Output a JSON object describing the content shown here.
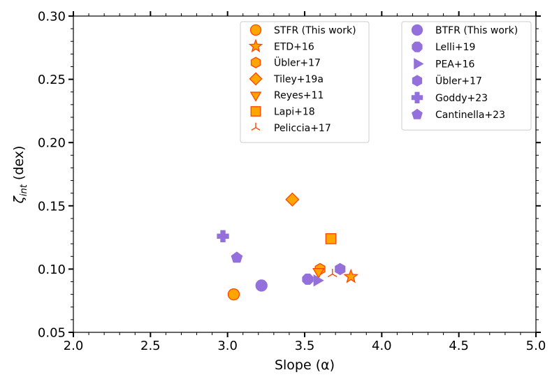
{
  "chart_data": {
    "type": "scatter",
    "title": "",
    "xlabel": "Slope (α)",
    "ylabel": "ζ_int (dex)",
    "xlim": [
      2.0,
      5.0
    ],
    "ylim": [
      0.05,
      0.3
    ],
    "xticks": [
      "2.0",
      "2.5",
      "3.0",
      "3.5",
      "4.0",
      "4.5",
      "5.0"
    ],
    "yticks": [
      "0.05",
      "0.10",
      "0.15",
      "0.20",
      "0.25",
      "0.30"
    ],
    "grid": false,
    "legends": [
      {
        "placement": "top-center",
        "entries": [
          {
            "name": "STFR (This work)",
            "marker": "circle",
            "color": "#ffa500",
            "edge": "#ff4500"
          },
          {
            "name": "ETD+16",
            "marker": "star",
            "color": "#ffa500",
            "edge": "#ff4500"
          },
          {
            "name": "Übler+17",
            "marker": "hexagon",
            "color": "#ffa500",
            "edge": "#ff4500"
          },
          {
            "name": "Tiley+19a",
            "marker": "diamond",
            "color": "#ffa500",
            "edge": "#ff4500"
          },
          {
            "name": "Reyes+11",
            "marker": "triangle-down",
            "color": "#ffa500",
            "edge": "#ff4500"
          },
          {
            "name": "Lapi+18",
            "marker": "square",
            "color": "#ffa500",
            "edge": "#ff4500"
          },
          {
            "name": "Peliccia+17",
            "marker": "tri-down",
            "color": "#ff4500",
            "edge": "#ff4500"
          }
        ]
      },
      {
        "placement": "top-right",
        "entries": [
          {
            "name": "BTFR (This work)",
            "marker": "circle",
            "color": "#9370db",
            "edge": "#9370db"
          },
          {
            "name": "Lelli+19",
            "marker": "octagon",
            "color": "#9370db",
            "edge": "#9370db"
          },
          {
            "name": "PEA+16",
            "marker": "triangle-right",
            "color": "#9370db",
            "edge": "#9370db"
          },
          {
            "name": "Übler+17",
            "marker": "hexagon",
            "color": "#9370db",
            "edge": "#9370db"
          },
          {
            "name": "Goddy+23",
            "marker": "plus",
            "color": "#9370db",
            "edge": "#9370db"
          },
          {
            "name": "Cantinella+23",
            "marker": "pentagon",
            "color": "#9370db",
            "edge": "#9370db"
          }
        ]
      }
    ],
    "series": [
      {
        "name": "STFR (This work)",
        "marker": "circle",
        "color": "#ffa500",
        "edge": "#ff4500",
        "x": 3.04,
        "y": 0.08
      },
      {
        "name": "ETD+16",
        "marker": "star",
        "color": "#ffa500",
        "edge": "#ff4500",
        "x": 3.8,
        "y": 0.094
      },
      {
        "name": "Übler+17",
        "marker": "hexagon",
        "color": "#ffa500",
        "edge": "#ff4500",
        "x": 3.6,
        "y": 0.1
      },
      {
        "name": "Tiley+19a",
        "marker": "diamond",
        "color": "#ffa500",
        "edge": "#ff4500",
        "x": 3.42,
        "y": 0.155
      },
      {
        "name": "Reyes+11",
        "marker": "triangle-down",
        "color": "#ffa500",
        "edge": "#ff4500",
        "x": 3.59,
        "y": 0.098
      },
      {
        "name": "Lapi+18",
        "marker": "square",
        "color": "#ffa500",
        "edge": "#ff4500",
        "x": 3.67,
        "y": 0.124
      },
      {
        "name": "Peliccia+17",
        "marker": "tri-down",
        "color": "#ff4500",
        "edge": "#ff4500",
        "x": 3.68,
        "y": 0.096
      },
      {
        "name": "BTFR (This work)",
        "marker": "circle",
        "color": "#9370db",
        "edge": "#9370db",
        "x": 3.22,
        "y": 0.087
      },
      {
        "name": "Lelli+19",
        "marker": "octagon",
        "color": "#9370db",
        "edge": "#9370db",
        "x": 3.52,
        "y": 0.092
      },
      {
        "name": "PEA+16",
        "marker": "triangle-right",
        "color": "#9370db",
        "edge": "#9370db",
        "x": 3.58,
        "y": 0.091
      },
      {
        "name": "Übler+17",
        "marker": "hexagon",
        "color": "#9370db",
        "edge": "#9370db",
        "x": 3.73,
        "y": 0.1
      },
      {
        "name": "Goddy+23",
        "marker": "plus",
        "color": "#9370db",
        "edge": "#9370db",
        "x": 2.97,
        "y": 0.126
      },
      {
        "name": "Cantinella+23",
        "marker": "pentagon",
        "color": "#9370db",
        "edge": "#9370db",
        "x": 3.06,
        "y": 0.109
      }
    ]
  }
}
